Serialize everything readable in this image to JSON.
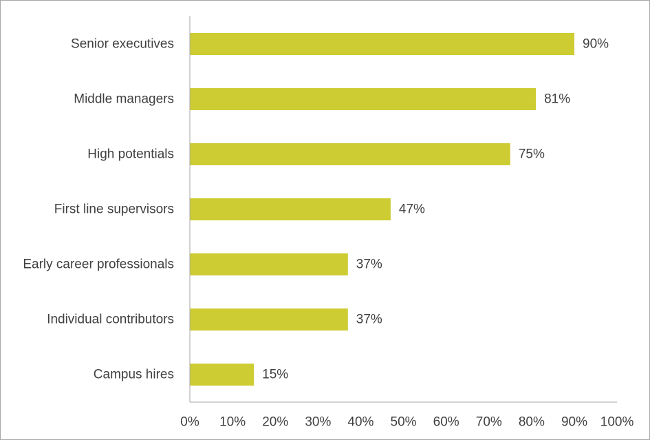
{
  "chart_data": {
    "type": "bar",
    "orientation": "horizontal",
    "title": "",
    "xlabel": "",
    "ylabel": "",
    "categories": [
      "Senior executives",
      "Middle managers",
      "High potentials",
      "First line supervisors",
      "Early career professionals",
      "Individual contributors",
      "Campus hires"
    ],
    "values": [
      90,
      81,
      75,
      47,
      37,
      37,
      15
    ],
    "value_labels": [
      "90%",
      "81%",
      "75%",
      "47%",
      "37%",
      "37%",
      "15%"
    ],
    "xlim": [
      0,
      100
    ],
    "x_ticks": [
      0,
      10,
      20,
      30,
      40,
      50,
      60,
      70,
      80,
      90,
      100
    ],
    "x_tick_labels": [
      "0%",
      "10%",
      "20%",
      "30%",
      "40%",
      "50%",
      "60%",
      "70%",
      "80%",
      "90%",
      "100%"
    ],
    "grid": false,
    "legend": "none",
    "bar_color": "#cdcc32",
    "axis_color": "#a6a6a6",
    "text_color": "#404040"
  }
}
